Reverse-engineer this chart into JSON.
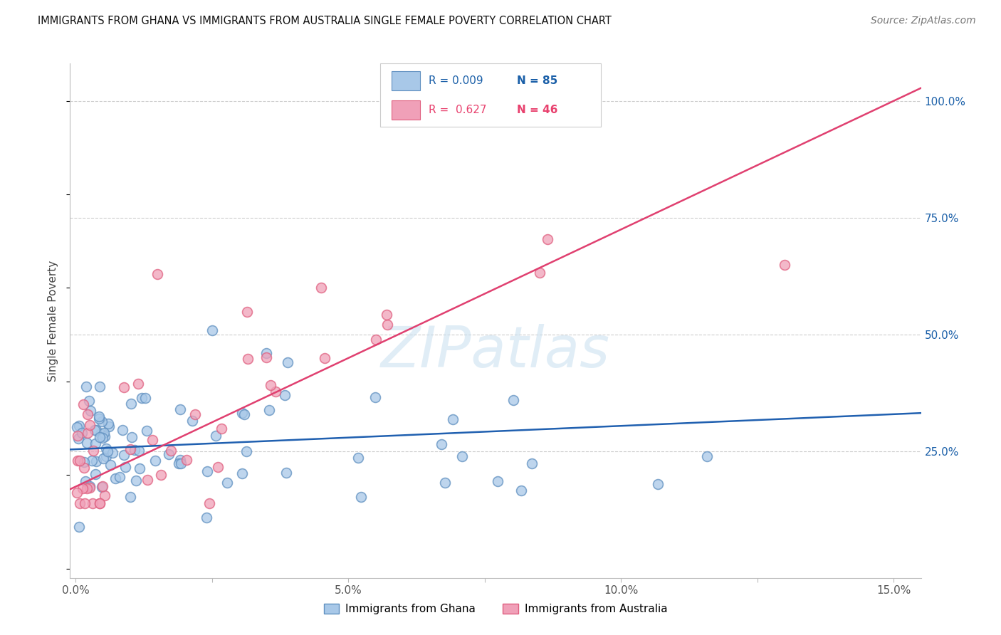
{
  "title": "IMMIGRANTS FROM GHANA VS IMMIGRANTS FROM AUSTRALIA SINGLE FEMALE POVERTY CORRELATION CHART",
  "source": "Source: ZipAtlas.com",
  "xlim": [
    -0.001,
    0.155
  ],
  "ylim": [
    -0.02,
    1.08
  ],
  "ylabel": "Single Female Poverty",
  "watermark": "ZIPatlas",
  "blue_R": "0.009",
  "blue_N": "85",
  "pink_R": "0.627",
  "pink_N": "46",
  "blue_color": "#a8c8e8",
  "pink_color": "#f0a0b8",
  "blue_edge_color": "#6090c0",
  "pink_edge_color": "#e06080",
  "blue_line_color": "#2060b0",
  "pink_line_color": "#e04070",
  "grid_color": "#cccccc",
  "background_color": "#ffffff",
  "blue_legend_color": "#1a5fa8",
  "pink_legend_color": "#e8416e",
  "xticks": [
    0.0,
    0.025,
    0.05,
    0.075,
    0.1,
    0.125,
    0.15
  ],
  "xticklabels": [
    "0.0%",
    "",
    "5.0%",
    "",
    "10.0%",
    "",
    "15.0%"
  ],
  "yticks_right": [
    0.25,
    0.5,
    0.75,
    1.0
  ],
  "ytick_labels_right": [
    "25.0%",
    "50.0%",
    "75.0%",
    "100.0%"
  ]
}
